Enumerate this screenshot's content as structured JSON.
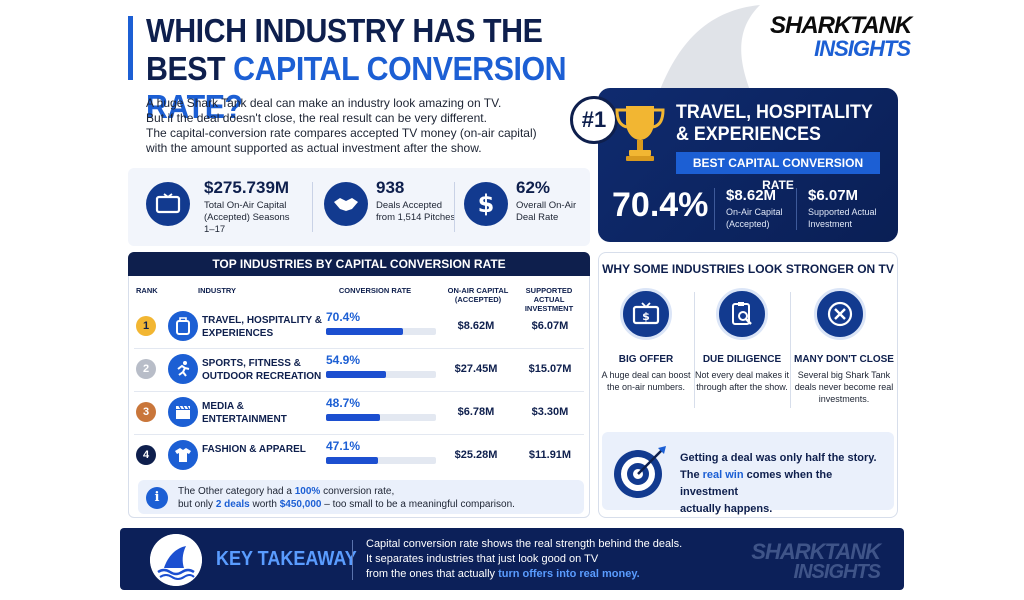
{
  "title": {
    "line1": "WHICH INDUSTRY HAS THE",
    "line2_prefix": "BEST ",
    "line2_highlight": "CAPITAL CONVERSION RATE?"
  },
  "logo": {
    "line1": "SHARKTANK",
    "line2": "INSIGHTS"
  },
  "intro": [
    "A huge Shark Tank deal can make an industry look amazing on TV.",
    "But if the deal doesn't close, the real result can be very different.",
    "The capital-conversion rate compares accepted TV money (on-air capital)",
    "with the amount supported as actual investment after the show."
  ],
  "stats": [
    {
      "icon": "tv-icon",
      "value": "$275.739M",
      "label": "Total On-Air Capital (Accepted) Seasons 1–17"
    },
    {
      "icon": "handshake-icon",
      "value": "938",
      "label": "Deals Accepted from 1,514 Pitches"
    },
    {
      "icon": "dollar-icon",
      "value": "62%",
      "label": "Overall On-Air Deal Rate"
    }
  ],
  "winner": {
    "rank": "#1",
    "title": "TRAVEL, HOSPITALITY & EXPERIENCES",
    "badge": "BEST CAPITAL CONVERSION RATE",
    "rate": "70.4%",
    "onair_value": "$8.62M",
    "onair_label": "On-Air Capital (Accepted)",
    "supported_value": "$6.07M",
    "supported_label": "Supported Actual Investment"
  },
  "table": {
    "title": "TOP INDUSTRIES BY CAPITAL CONVERSION RATE",
    "headers": {
      "rank": "RANK",
      "industry": "INDUSTRY",
      "rate": "CONVERSION RATE",
      "onair": "ON-AIR CAPITAL (ACCEPTED)",
      "supported": "SUPPORTED ACTUAL INVESTMENT"
    },
    "rows": [
      {
        "rank": "1",
        "name": "TRAVEL, HOSPITALITY & EXPERIENCES",
        "rate": "70.4%",
        "rate_value": 70.4,
        "onair": "$8.62M",
        "supported": "$6.07M",
        "icon": "luggage-icon",
        "badge_color": "#f2b632"
      },
      {
        "rank": "2",
        "name": "SPORTS, FITNESS & OUTDOOR RECREATION",
        "rate": "54.9%",
        "rate_value": 54.9,
        "onair": "$27.45M",
        "supported": "$15.07M",
        "icon": "runner-icon",
        "badge_color": "#b8bdc8"
      },
      {
        "rank": "3",
        "name": "MEDIA & ENTERTAINMENT",
        "rate": "48.7%",
        "rate_value": 48.7,
        "onair": "$6.78M",
        "supported": "$3.30M",
        "icon": "clapperboard-icon",
        "badge_color": "#c9763a"
      },
      {
        "rank": "4",
        "name": "FASHION & APPAREL",
        "rate": "47.1%",
        "rate_value": 47.1,
        "onair": "$25.28M",
        "supported": "$11.91M",
        "icon": "tshirt-icon",
        "badge_color": "#0e1f4d"
      }
    ],
    "note": {
      "line1_prefix": "The Other category had a ",
      "line1_highlight": "100%",
      "line1_suffix": " conversion rate,",
      "line2_prefix": "but only ",
      "line2_h1": "2 deals",
      "line2_mid": " worth ",
      "line2_h2": "$450,000",
      "line2_suffix": " – too small to be a meaningful comparison."
    }
  },
  "why": {
    "title": "WHY SOME INDUSTRIES LOOK STRONGER ON TV",
    "items": [
      {
        "icon": "tv-dollar-icon",
        "heading": "BIG OFFER",
        "text": "A huge deal can boost the on-air numbers."
      },
      {
        "icon": "clipboard-search-icon",
        "heading": "DUE DILIGENCE",
        "text": "Not every deal makes it through after the show."
      },
      {
        "icon": "cancel-icon",
        "heading": "MANY DON'T CLOSE",
        "text": "Several big Shark Tank deals never become real investments."
      }
    ],
    "callout": {
      "line1": "Getting a deal was only half the story.",
      "line2_prefix": "The ",
      "line2_highlight": "real win",
      "line2_suffix": " comes when the investment",
      "line3": "actually happens."
    }
  },
  "footer": {
    "label": "KEY TAKEAWAY",
    "line1": "Capital conversion rate shows the real strength behind the deals.",
    "line2": "It separates industries that just look good on TV",
    "line3_prefix": "from the ones that actually ",
    "line3_highlight": "turn offers into real money."
  },
  "colors": {
    "navy": "#0e1f4d",
    "blue": "#1c5fd4",
    "gold": "#f2b632"
  }
}
